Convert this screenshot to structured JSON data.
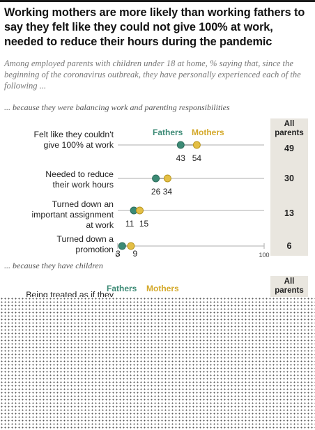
{
  "title": "Working mothers are more likely than working fathers to say they felt like they could not give 100% at work, needed to reduce their hours during the pandemic",
  "subtitle": "Among employed parents with children under 18 at home, % saying that, since the beginning of the coronavirus outbreak, they have personally experienced each of the following ...",
  "colors": {
    "fathers": "#3c8a75",
    "mothers": "#e4bf45",
    "axis": "#bdbdbd",
    "column": "#e9e6df"
  },
  "section1": {
    "label": "... because they were balancing work and parenting responsibilities"
  },
  "section2": {
    "label": "... because they have children"
  },
  "legend": {
    "fathers": "Fathers",
    "mothers": "Mothers",
    "all_parents": "All parents"
  },
  "axis": {
    "min_label": "0",
    "max_label": "100"
  },
  "rows": [
    {
      "label": "Felt like they couldn't give 100% at work",
      "all": "49"
    },
    {
      "label": "Needed to reduce their work hours",
      "all": "30"
    },
    {
      "label": "Turned down an important assignment at work",
      "all": "13"
    },
    {
      "label": "Turned down a promotion",
      "all": "6"
    }
  ],
  "section2_rows": [
    {
      "label": "Being treated as if they"
    }
  ],
  "chart_data": {
    "type": "scatter",
    "title": "Working mothers are more likely than working fathers to say they felt like they could not give 100% at work, needed to reduce their hours during the pandemic",
    "xlim": [
      0,
      100
    ],
    "categories": [
      "Felt like they couldn't give 100% at work",
      "Needed to reduce their work hours",
      "Turned down an important assignment at work",
      "Turned down a promotion"
    ],
    "series": [
      {
        "name": "Fathers",
        "values": [
          43,
          26,
          11,
          3
        ]
      },
      {
        "name": "Mothers",
        "values": [
          54,
          34,
          15,
          9
        ]
      },
      {
        "name": "All parents",
        "values": [
          49,
          30,
          13,
          6
        ]
      }
    ],
    "legend": "top"
  }
}
